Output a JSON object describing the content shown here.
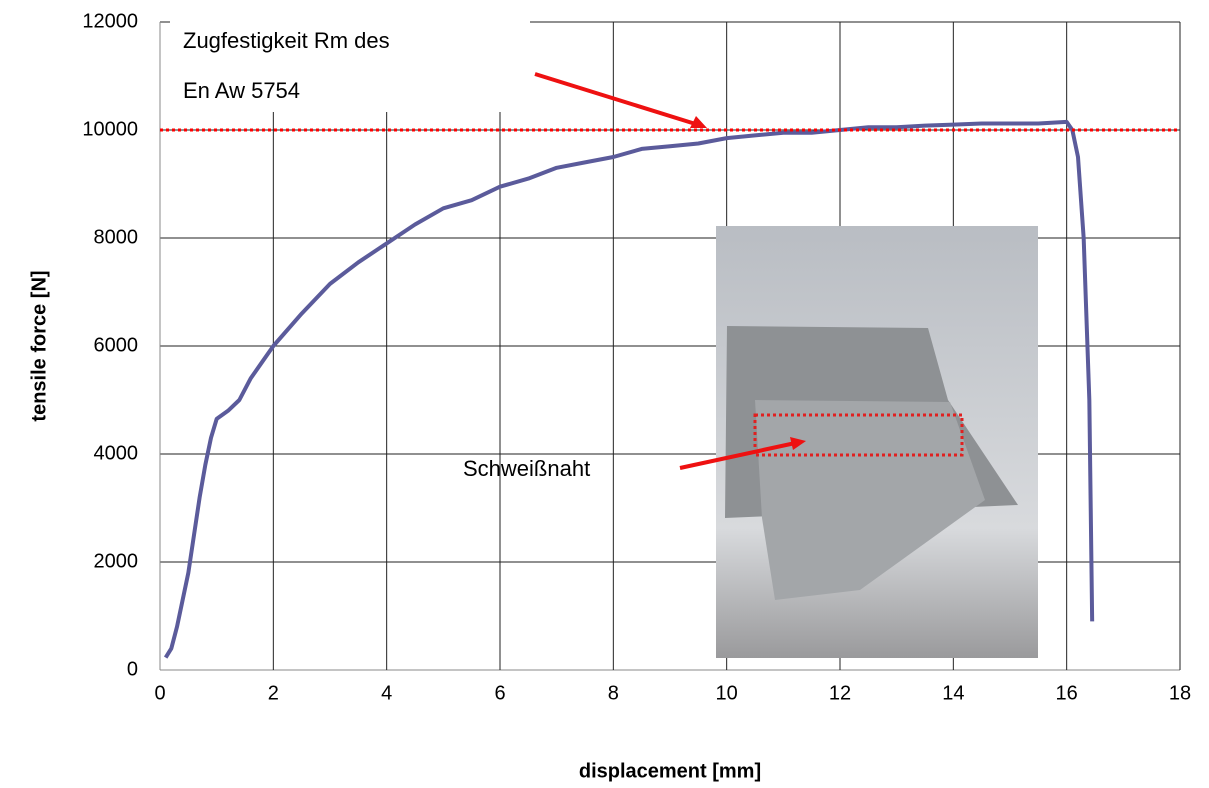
{
  "chart_data": {
    "type": "line",
    "x_label": "displacement [mm]",
    "y_label": "tensile force [N]",
    "xlim": [
      0,
      18
    ],
    "xticks": [
      0,
      2,
      4,
      6,
      8,
      10,
      12,
      14,
      16,
      18
    ],
    "ylim": [
      0,
      12000
    ],
    "yticks": [
      0,
      2000,
      4000,
      6000,
      8000,
      10000,
      12000
    ],
    "grid": true,
    "reference_line": {
      "value": 10000,
      "color": "#ff0000"
    },
    "annotations": [
      "Zugfestigkeit Rm des",
      "En Aw 5754",
      "Schweißnaht"
    ],
    "series": [
      {
        "color": "#5b5b9b",
        "x": [
          0.1,
          0.2,
          0.3,
          0.4,
          0.5,
          0.6,
          0.7,
          0.8,
          0.9,
          1.0,
          1.2,
          1.4,
          1.6,
          1.8,
          2.0,
          2.5,
          3.0,
          3.5,
          4.0,
          4.5,
          5.0,
          5.5,
          6.0,
          6.5,
          7.0,
          7.5,
          8.0,
          8.5,
          9.0,
          9.5,
          10.0,
          10.5,
          11.0,
          11.5,
          12.0,
          12.5,
          13.0,
          13.5,
          14.0,
          14.5,
          15.0,
          15.5,
          16.0,
          16.1,
          16.2,
          16.3,
          16.4,
          16.45
        ],
        "values": [
          230,
          400,
          800,
          1300,
          1800,
          2500,
          3200,
          3800,
          4300,
          4650,
          4800,
          5000,
          5400,
          5700,
          6000,
          6600,
          7150,
          7550,
          7900,
          8250,
          8550,
          8700,
          8950,
          9100,
          9300,
          9400,
          9500,
          9650,
          9700,
          9750,
          9850,
          9900,
          9950,
          9950,
          10000,
          10050,
          10050,
          10080,
          10100,
          10120,
          10120,
          10120,
          10150,
          10000,
          9500,
          8000,
          5000,
          900
        ]
      }
    ]
  }
}
